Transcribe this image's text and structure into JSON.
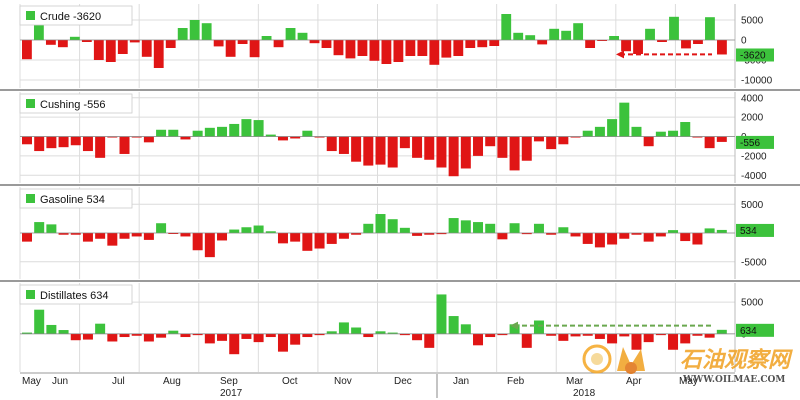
{
  "colors": {
    "positive": "#3cc23c",
    "negative": "#e01515",
    "grid": "#dcdcdc",
    "divider": "#9a9a9a",
    "zero": "#444444",
    "badge": "#3cc23c",
    "arrow_red": "#e01515",
    "arrow_green": "#6aa84f"
  },
  "chart_data": [
    {
      "type": "bar",
      "name": "Crude",
      "legend": "Crude -3620",
      "latest_label": "-3620",
      "unit": "thousand barrels",
      "ylim": [
        -12000,
        9000
      ],
      "ticks": [
        5000,
        0,
        -5000,
        -10000
      ],
      "tick_labels": [
        "5000",
        "0",
        "-5000",
        "-10000"
      ],
      "values": [
        -4800,
        5500,
        -1200,
        -1800,
        800,
        -500,
        -5000,
        -5500,
        -3500,
        -600,
        -4200,
        -7000,
        -2000,
        3000,
        5000,
        4200,
        -1600,
        -4200,
        -1000,
        -4300,
        1000,
        -1800,
        3000,
        1800,
        -800,
        -2000,
        -3800,
        -4600,
        -4000,
        -5200,
        -6000,
        -5500,
        -4000,
        -4000,
        -6200,
        -4400,
        -4000,
        -2000,
        -1800,
        -1500,
        6500,
        1800,
        1200,
        -1100,
        2800,
        2300,
        4200,
        -2000,
        -200,
        1000,
        -2800,
        -3500,
        2800,
        -500,
        5800,
        -2100,
        -1000,
        5700,
        -3620
      ],
      "annotation": "arrow from Apr to latest value"
    },
    {
      "type": "bar",
      "name": "Cushing",
      "legend": "Cushing -556",
      "latest_label": "-556",
      "unit": "thousand barrels",
      "ylim": [
        -4800,
        4600
      ],
      "ticks": [
        4000,
        2000,
        0,
        -2000,
        -4000
      ],
      "tick_labels": [
        "4000",
        "2000",
        "0",
        "-2000",
        "-4000"
      ],
      "values": [
        -800,
        -1500,
        -1200,
        -1100,
        -900,
        -1500,
        -2200,
        -100,
        -1800,
        -100,
        -600,
        700,
        700,
        -300,
        600,
        900,
        1000,
        1300,
        1800,
        1700,
        200,
        -400,
        -200,
        600,
        -100,
        -1500,
        -1800,
        -2600,
        -3000,
        -2900,
        -3200,
        -1200,
        -2200,
        -2400,
        -3200,
        -4100,
        -3300,
        -2000,
        -1000,
        -2200,
        -3500,
        -2500,
        -500,
        -1300,
        -800,
        -100,
        600,
        1000,
        1800,
        3500,
        1000,
        -1000,
        500,
        600,
        1500,
        -100,
        -1200,
        -556
      ],
      "annotation": ""
    },
    {
      "type": "bar",
      "name": "Gasoline",
      "legend": "Gasoline 534",
      "latest_label": "534",
      "unit": "thousand barrels",
      "ylim": [
        -8000,
        8000
      ],
      "ticks": [
        5000,
        0,
        -5000
      ],
      "tick_labels": [
        "5000",
        "0",
        "-5000"
      ],
      "values": [
        -1500,
        1900,
        1500,
        -300,
        -300,
        -1500,
        -1000,
        -2200,
        -1000,
        -600,
        -1200,
        1700,
        -100,
        -600,
        -3000,
        -4200,
        -1300,
        600,
        1000,
        1300,
        300,
        -1800,
        -1500,
        -3100,
        -2700,
        -1900,
        -1000,
        -300,
        1600,
        3300,
        2400,
        900,
        -500,
        -300,
        -200,
        2600,
        2200,
        1900,
        1600,
        -1100,
        1700,
        -200,
        1600,
        -300,
        1000,
        -600,
        -1900,
        -2500,
        -2000,
        -1000,
        -300,
        -1500,
        -600,
        500,
        -1400,
        -2000,
        800,
        534
      ],
      "annotation": ""
    },
    {
      "type": "bar",
      "name": "Distillates",
      "legend": "Distillates 634",
      "latest_label": "634",
      "unit": "thousand barrels",
      "ylim": [
        -6000,
        8000
      ],
      "ticks": [
        5000,
        0
      ],
      "tick_labels": [
        "5000",
        "0"
      ],
      "values": [
        200,
        3800,
        1400,
        600,
        -1000,
        -900,
        1600,
        -1200,
        -500,
        -300,
        -1200,
        -600,
        500,
        -500,
        -200,
        -1500,
        -1100,
        -3200,
        -800,
        -1300,
        -500,
        -2800,
        -1700,
        -500,
        -200,
        400,
        1800,
        1000,
        -500,
        400,
        200,
        -200,
        -1000,
        -2200,
        6200,
        2800,
        1500,
        -1800,
        -500,
        -200,
        1500,
        -2200,
        2100,
        -300,
        -1100,
        -400,
        -300,
        -800,
        -1500,
        -400,
        -2500,
        -1300,
        -200,
        -2500,
        -1500,
        -300,
        -600,
        634
      ],
      "annotation": "arrow from Feb to latest value"
    }
  ],
  "x_axis": {
    "months": [
      "May",
      "Jun",
      "Jul",
      "Aug",
      "Sep",
      "Oct",
      "Nov",
      "Dec",
      "Jan",
      "Feb",
      "Mar",
      "Apr",
      "May"
    ],
    "years": [
      "2017",
      "2018"
    ]
  },
  "watermark": {
    "text": "石油观察网",
    "url": "WWW.OILMAE.COM"
  }
}
